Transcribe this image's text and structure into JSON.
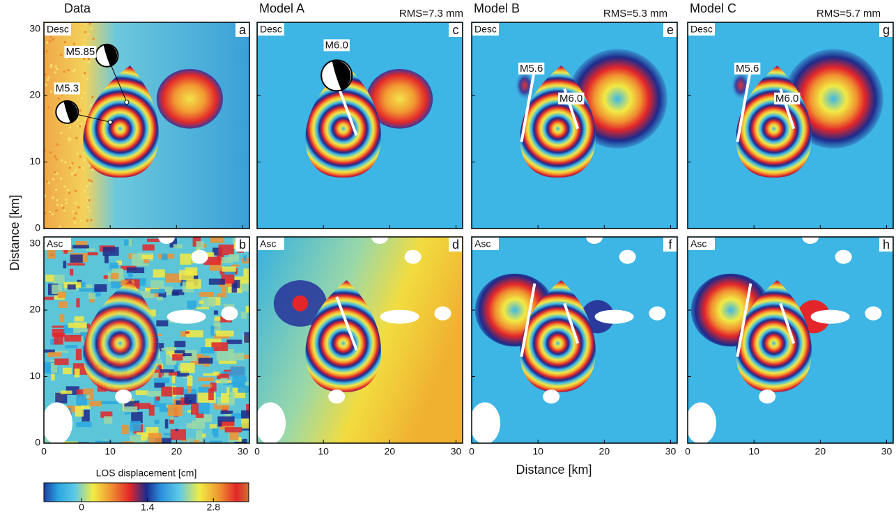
{
  "columns": [
    {
      "title": "Data"
    },
    {
      "title": "Model A",
      "rms": "RMS=7.3 mm"
    },
    {
      "title": "Model B",
      "rms": "RMS=5.3 mm"
    },
    {
      "title": "Model C",
      "rms": "RMS=5.7 mm"
    }
  ],
  "panels": [
    {
      "tag": "Desc",
      "letter": "a",
      "annotations": [
        "M5.85",
        "M5.3"
      ]
    },
    {
      "tag": "Asc",
      "letter": "b"
    },
    {
      "tag": "Desc",
      "letter": "c",
      "annotations": [
        "M6.0"
      ]
    },
    {
      "tag": "Asc",
      "letter": "d"
    },
    {
      "tag": "Desc",
      "letter": "e",
      "annotations": [
        "M5.6",
        "M6.0"
      ]
    },
    {
      "tag": "Asc",
      "letter": "f"
    },
    {
      "tag": "Desc",
      "letter": "g",
      "annotations": [
        "M5.6",
        "M6.0"
      ]
    },
    {
      "tag": "Asc",
      "letter": "h"
    }
  ],
  "axes": {
    "x_label": "Distance [km]",
    "y_label": "Distance [km]",
    "xlim": [
      0,
      31
    ],
    "ylim": [
      0,
      31
    ],
    "xticks": [
      0,
      10,
      20,
      30
    ],
    "yticks": [
      0,
      10,
      20,
      30
    ]
  },
  "colorbar": {
    "label": "LOS displacement [cm]",
    "lim": [
      -0.8,
      3.55
    ],
    "ticks": [
      0,
      1.4,
      2.8
    ]
  }
}
